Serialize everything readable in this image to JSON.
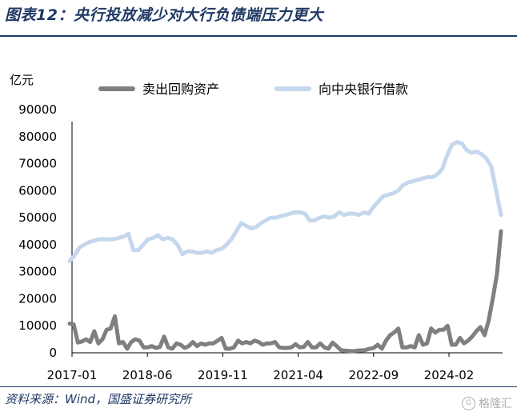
{
  "title": "图表12：央行投放减少对大行负债端压力更大",
  "source": "资料来源：Wind，国盛证券研究所",
  "watermark": "格隆汇",
  "colors": {
    "title": "#1f3864",
    "series_sell": "#7f7f7f",
    "series_cb": "#c5d7ec"
  },
  "chart_data": {
    "type": "line",
    "ylabel": "亿元",
    "ylim": [
      0,
      90000
    ],
    "yticks": [
      0,
      10000,
      20000,
      30000,
      40000,
      50000,
      60000,
      70000,
      80000,
      90000
    ],
    "xtick_labels": [
      "2017-01",
      "2018-06",
      "2019-11",
      "2021-04",
      "2022-09",
      "2024-02"
    ],
    "x_start": "2017-01",
    "legend_position": "top",
    "series": [
      {
        "name": "卖出回购资产",
        "values": [
          10800,
          10500,
          3800,
          4200,
          5000,
          4000,
          8000,
          3500,
          5000,
          8500,
          9000,
          13500,
          3500,
          4000,
          1500,
          4000,
          5000,
          4500,
          2000,
          2000,
          2500,
          1800,
          2200,
          6000,
          2000,
          1500,
          3500,
          3000,
          1800,
          2500,
          4000,
          2500,
          3500,
          3000,
          3500,
          3500,
          4500,
          5500,
          1500,
          1500,
          2000,
          4500,
          3500,
          4000,
          3500,
          4500,
          4000,
          3000,
          3500,
          3500,
          4000,
          2000,
          1800,
          1800,
          2000,
          3200,
          2000,
          2200,
          4000,
          2000,
          2000,
          3500,
          2000,
          1500,
          3800,
          2500,
          1000,
          800,
          700,
          600,
          800,
          900,
          1000,
          1500,
          1800,
          3000,
          1500,
          4500,
          6500,
          7500,
          9000,
          2000,
          2000,
          2500,
          2000,
          6500,
          3000,
          3500,
          9000,
          7500,
          8500,
          8500,
          10000,
          3000,
          3000,
          5500,
          3500,
          4500,
          6000,
          8000,
          9500,
          6500,
          12000,
          20000,
          29000,
          45000
        ]
      },
      {
        "name": "向中央银行借款",
        "values": [
          34000,
          36000,
          39000,
          40000,
          41000,
          41500,
          42000,
          42000,
          42000,
          42000,
          42500,
          43000,
          44000,
          38000,
          38000,
          40000,
          42000,
          42500,
          43500,
          42000,
          42500,
          42000,
          40000,
          36500,
          37500,
          37500,
          37000,
          37000,
          37500,
          37000,
          38000,
          38500,
          40000,
          42000,
          45000,
          48000,
          47000,
          46000,
          46500,
          48000,
          49000,
          50000,
          50000,
          50500,
          51000,
          51500,
          52000,
          52000,
          51500,
          49000,
          49000,
          50000,
          50500,
          50000,
          50500,
          52000,
          51000,
          51500,
          51500,
          51000,
          52000,
          51500,
          54000,
          56000,
          58000,
          58500,
          59000,
          60000,
          62000,
          63000,
          63500,
          64000,
          64500,
          65000,
          65000,
          66000,
          68000,
          73000,
          77000,
          78000,
          77500,
          75000,
          74000,
          74500,
          73500,
          72000,
          69000,
          60000,
          51000
        ]
      }
    ]
  }
}
